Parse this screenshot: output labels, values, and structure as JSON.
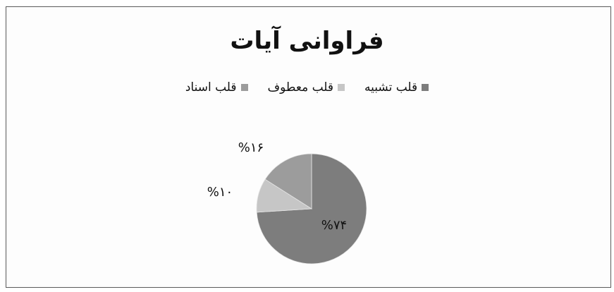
{
  "chart_data": {
    "type": "pie",
    "title": "فراوانی آیات",
    "categories": [
      "قلب تشبیه",
      "قلب معطوف",
      "قلب اسناد"
    ],
    "values": [
      74,
      10,
      16
    ],
    "value_labels": [
      "%۷۴",
      "%۱۰",
      "%۱۶"
    ],
    "colors": [
      "#7d7d7d",
      "#c6c6c6",
      "#9c9c9c"
    ],
    "legend_position": "top"
  }
}
